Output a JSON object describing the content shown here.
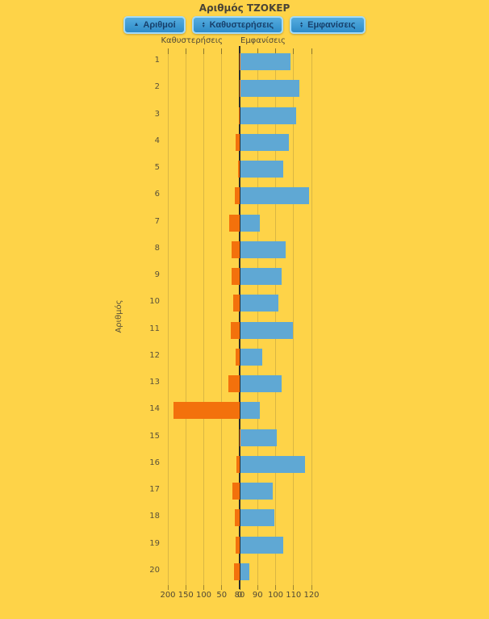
{
  "header": {
    "title": "Αριθμός ΤΖΟΚΕΡ",
    "buttons": [
      {
        "label": "Αριθμοί",
        "icon": "sort-ascending-icon"
      },
      {
        "label": "Καθυστερήσεις",
        "icon": "sort-updown-icon"
      },
      {
        "label": "Εμφανίσεις",
        "icon": "sort-updown-icon"
      }
    ]
  },
  "chart_data": {
    "type": "bar",
    "orientation": "horizontal-diverging",
    "title": "Αριθμός ΤΖΟΚΕΡ",
    "ylabel": "Αριθμός",
    "grid": true,
    "categories": [
      1,
      2,
      3,
      4,
      5,
      6,
      7,
      8,
      9,
      10,
      11,
      12,
      13,
      14,
      15,
      16,
      17,
      18,
      19,
      20
    ],
    "series": [
      {
        "name": "Καθυστερήσεις",
        "direction": "left",
        "color": "#f3710c",
        "values": [
          1,
          1,
          3,
          11,
          5,
          13,
          29,
          22,
          22,
          19,
          25,
          11,
          31,
          185,
          1,
          9,
          21,
          13,
          11,
          15
        ],
        "axis": {
          "ticks": [
            200,
            150,
            100,
            50,
            0
          ],
          "min": 0,
          "max": 200
        }
      },
      {
        "name": "Εμφανίσεις",
        "direction": "right",
        "color": "#5fa8d4",
        "values": [
          108,
          113,
          111,
          107,
          104,
          118,
          91,
          105,
          103,
          101,
          109,
          92,
          103,
          91,
          100,
          116,
          98,
          99,
          104,
          85
        ],
        "axis": {
          "ticks": [
            80,
            90,
            100,
            110,
            120
          ],
          "min": 80,
          "max": 120
        }
      }
    ]
  },
  "colors": {
    "background": "#FED348",
    "bar_delay": "#f3710c",
    "bar_appear": "#5fa8d4",
    "button_border": "#a5dbf7",
    "button_text": "#17406b",
    "axis_line": "#2b2b2b"
  }
}
